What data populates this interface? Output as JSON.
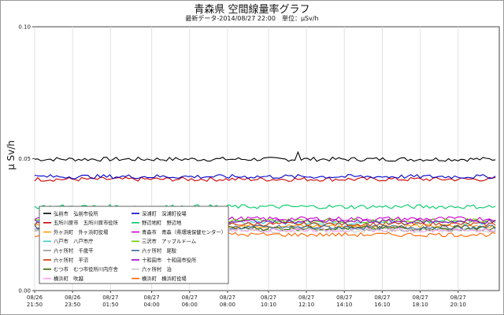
{
  "chart_data": {
    "type": "line",
    "title": "青森県 空間線量率グラフ",
    "subtitle": "最新データ-2014/08/27 22:00　単位：μSv/h",
    "ylabel": "μ Sv/h",
    "xlabel": "",
    "ylim": [
      0.0,
      0.1
    ],
    "yticks": [
      "0.00",
      "0.05",
      "0.10"
    ],
    "yticks_values": [
      0.0,
      0.05,
      0.1
    ],
    "x_range_hours": [
      0,
      24.5
    ],
    "xticks": [
      {
        "date": "08/26",
        "time": "21:50",
        "h": 0
      },
      {
        "date": "08/26",
        "time": "23:50",
        "h": 2
      },
      {
        "date": "08/27",
        "time": "01:50",
        "h": 4
      },
      {
        "date": "08/27",
        "time": "04:00",
        "h": 6.17
      },
      {
        "date": "08/27",
        "time": "06:00",
        "h": 8.17
      },
      {
        "date": "08/27",
        "time": "08:00",
        "h": 10.17
      },
      {
        "date": "08/27",
        "time": "10:10",
        "h": 12.33
      },
      {
        "date": "08/27",
        "time": "12:10",
        "h": 14.33
      },
      {
        "date": "08/27",
        "time": "14:10",
        "h": 16.33
      },
      {
        "date": "08/27",
        "time": "16:10",
        "h": 18.33
      },
      {
        "date": "08/27",
        "time": "18:10",
        "h": 20.33
      },
      {
        "date": "08/27",
        "time": "20:10",
        "h": 22.33
      }
    ],
    "grid": true,
    "legend_position": "bottom-left",
    "series": [
      {
        "name": "弘前市　弘前市役所",
        "color": "#000000",
        "level": 0.0498,
        "spike": 0.0525
      },
      {
        "name": "五所川原市　五所川原市役所",
        "color": "#cc0000",
        "level": 0.0422
      },
      {
        "name": "外ヶ浜町　外ヶ浜町役場",
        "color": "#ff9900",
        "level": 0.0245
      },
      {
        "name": "八戸市　八戸市庁",
        "color": "#33cccc",
        "level": 0.0258
      },
      {
        "name": "六ヶ所村　千歳平",
        "color": "#999999",
        "level": 0.0232
      },
      {
        "name": "六ヶ所村　平沼",
        "color": "#cc3300",
        "level": 0.0252
      },
      {
        "name": "むつ市　むつ市役所川内庁舎",
        "color": "#336600",
        "level": 0.0236
      },
      {
        "name": "横浜町　吹越",
        "color": "#ff99ff",
        "level": 0.023
      },
      {
        "name": "深浦町　深浦町役場",
        "color": "#0000cc",
        "level": 0.0432
      },
      {
        "name": "野辺地町　野辺地",
        "color": "#00cc66",
        "level": 0.0318
      },
      {
        "name": "青森市　青森（県環境保健センター）",
        "color": "#cc00cc",
        "level": 0.0272
      },
      {
        "name": "三沢市　アップルドーム",
        "color": "#66cc00",
        "level": 0.0265
      },
      {
        "name": "六ヶ所村　尾駮",
        "color": "#336699",
        "level": 0.024
      },
      {
        "name": "十和田市　十和田市役所",
        "color": "#9900cc",
        "level": 0.0262
      },
      {
        "name": "六ヶ所村　泊",
        "color": "#cccccc",
        "level": 0.0227
      },
      {
        "name": "横浜町　横浜町役場",
        "color": "#ff6600",
        "level": 0.0212
      }
    ]
  }
}
